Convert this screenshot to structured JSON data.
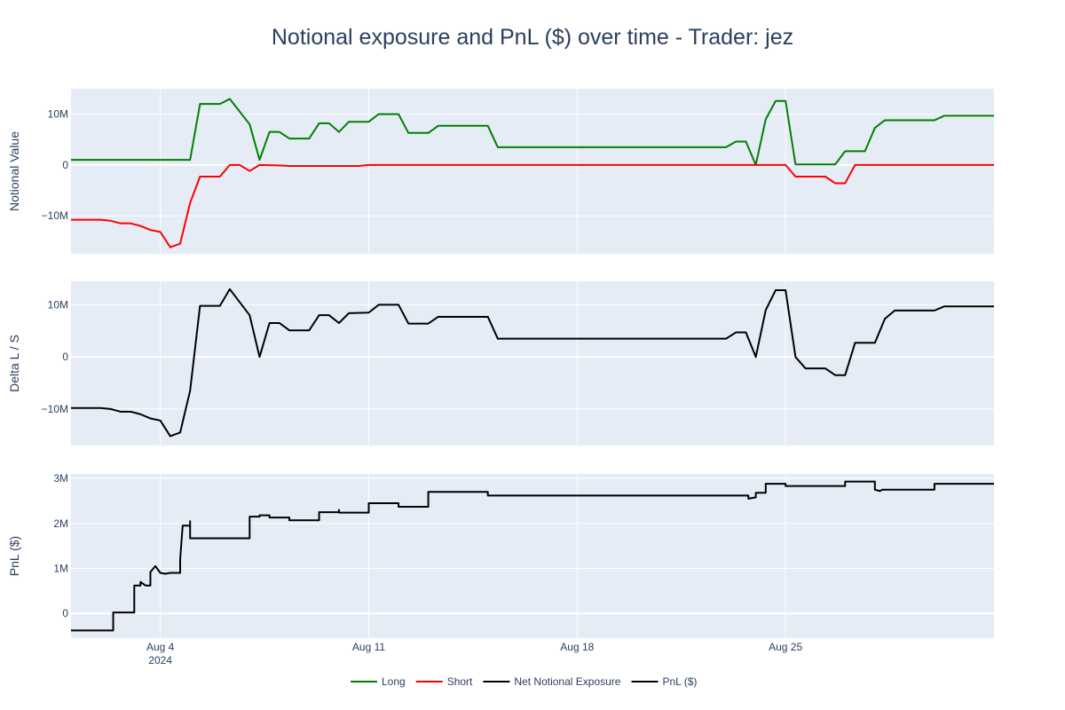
{
  "chart_data": {
    "type": "line",
    "title": "Notional exposure and PnL ($) over time - Trader: jez",
    "x_range": [
      "2024-08-01",
      "2024-09-01"
    ],
    "x_ticks": [
      {
        "date": "2024-08-04",
        "label": "Aug 4",
        "sublabel": "2024"
      },
      {
        "date": "2024-08-11",
        "label": "Aug 11",
        "sublabel": ""
      },
      {
        "date": "2024-08-18",
        "label": "Aug 18",
        "sublabel": ""
      },
      {
        "date": "2024-08-25",
        "label": "Aug 25",
        "sublabel": ""
      }
    ],
    "colors": {
      "plot_bg": "#e5ecf6",
      "grid": "#ffffff",
      "text": "#2a3f5f",
      "long": "#008000",
      "short": "#ff0000",
      "net": "#000000",
      "pnl": "#000000"
    },
    "panels": [
      {
        "ylabel": "Notional Value",
        "ylim": [
          -17.5,
          15
        ],
        "ticks": [
          {
            "v": 10,
            "label": "10M"
          },
          {
            "v": 0,
            "label": "0"
          },
          {
            "v": -10,
            "label": "−10M"
          }
        ],
        "series": [
          "long",
          "short"
        ]
      },
      {
        "ylabel": "Delta L / S",
        "ylim": [
          -17,
          14.5
        ],
        "ticks": [
          {
            "v": 10,
            "label": "10M"
          },
          {
            "v": 0,
            "label": "0"
          },
          {
            "v": -10,
            "label": "−10M"
          }
        ],
        "series": [
          "net"
        ]
      },
      {
        "ylabel": "PnL ($)",
        "ylim": [
          -0.55,
          3.1
        ],
        "ticks": [
          {
            "v": 3,
            "label": "3M"
          },
          {
            "v": 2,
            "label": "2M"
          },
          {
            "v": 1,
            "label": "1M"
          },
          {
            "v": 0,
            "label": "0"
          }
        ],
        "series": [
          "pnl"
        ]
      }
    ],
    "series": {
      "long": {
        "name": "Long",
        "unit": "$M",
        "points": [
          [
            "2024-08-01",
            1.0
          ],
          [
            "2024-08-05",
            1.0
          ],
          [
            "2024-08-05 08:00",
            12.0
          ],
          [
            "2024-08-06",
            12.0
          ],
          [
            "2024-08-06 08:00",
            13.0
          ],
          [
            "2024-08-07",
            8.0
          ],
          [
            "2024-08-07 08:00",
            1.0
          ],
          [
            "2024-08-07 16:00",
            6.5
          ],
          [
            "2024-08-08",
            6.5
          ],
          [
            "2024-08-08 08:00",
            5.2
          ],
          [
            "2024-08-09",
            5.2
          ],
          [
            "2024-08-09 08:00",
            8.2
          ],
          [
            "2024-08-09 16:00",
            8.2
          ],
          [
            "2024-08-10",
            6.5
          ],
          [
            "2024-08-10 08:00",
            8.5
          ],
          [
            "2024-08-11",
            8.5
          ],
          [
            "2024-08-11 08:00",
            10.0
          ],
          [
            "2024-08-12",
            10.0
          ],
          [
            "2024-08-12 08:00",
            6.3
          ],
          [
            "2024-08-13",
            6.3
          ],
          [
            "2024-08-13 08:00",
            7.7
          ],
          [
            "2024-08-15",
            7.7
          ],
          [
            "2024-08-15 08:00",
            3.5
          ],
          [
            "2024-08-23",
            3.5
          ],
          [
            "2024-08-23 08:00",
            4.6
          ],
          [
            "2024-08-23 16:00",
            4.6
          ],
          [
            "2024-08-24",
            0.0
          ],
          [
            "2024-08-24 08:00",
            9.0
          ],
          [
            "2024-08-24 16:00",
            12.6
          ],
          [
            "2024-08-25",
            12.6
          ],
          [
            "2024-08-25 08:00",
            0.1
          ],
          [
            "2024-08-26 16:00",
            0.1
          ],
          [
            "2024-08-27",
            2.7
          ],
          [
            "2024-08-27 16:00",
            2.7
          ],
          [
            "2024-08-28",
            7.3
          ],
          [
            "2024-08-28 08:00",
            8.8
          ],
          [
            "2024-08-30",
            8.8
          ],
          [
            "2024-08-30 08:00",
            9.7
          ],
          [
            "2024-09-01",
            9.7
          ]
        ]
      },
      "short": {
        "name": "Short",
        "unit": "$M",
        "points": [
          [
            "2024-08-01",
            -10.8
          ],
          [
            "2024-08-02",
            -10.8
          ],
          [
            "2024-08-02 08:00",
            -11.0
          ],
          [
            "2024-08-02 16:00",
            -11.5
          ],
          [
            "2024-08-03",
            -11.5
          ],
          [
            "2024-08-03 08:00",
            -12.0
          ],
          [
            "2024-08-03 16:00",
            -12.8
          ],
          [
            "2024-08-04",
            -13.2
          ],
          [
            "2024-08-04 08:00",
            -16.2
          ],
          [
            "2024-08-04 16:00",
            -15.5
          ],
          [
            "2024-08-05",
            -7.5
          ],
          [
            "2024-08-05 08:00",
            -2.3
          ],
          [
            "2024-08-06",
            -2.3
          ],
          [
            "2024-08-06 08:00",
            0.0
          ],
          [
            "2024-08-06 16:00",
            0.0
          ],
          [
            "2024-08-07",
            -1.2
          ],
          [
            "2024-08-07 08:00",
            0.0
          ],
          [
            "2024-08-08",
            -0.1
          ],
          [
            "2024-08-08 08:00",
            -0.2
          ],
          [
            "2024-08-10 16:00",
            -0.2
          ],
          [
            "2024-08-11",
            0.0
          ],
          [
            "2024-08-25",
            0.0
          ],
          [
            "2024-08-25 08:00",
            -2.3
          ],
          [
            "2024-08-26 08:00",
            -2.3
          ],
          [
            "2024-08-26 16:00",
            -3.6
          ],
          [
            "2024-08-27",
            -3.6
          ],
          [
            "2024-08-27 08:00",
            0.0
          ],
          [
            "2024-09-01",
            0.0
          ]
        ]
      },
      "net": {
        "name": "Net Notional Exposure",
        "unit": "$M",
        "points": [
          [
            "2024-08-01",
            -9.8
          ],
          [
            "2024-08-02",
            -9.8
          ],
          [
            "2024-08-02 08:00",
            -10.0
          ],
          [
            "2024-08-02 16:00",
            -10.5
          ],
          [
            "2024-08-03",
            -10.5
          ],
          [
            "2024-08-03 08:00",
            -11.0
          ],
          [
            "2024-08-03 16:00",
            -11.8
          ],
          [
            "2024-08-04",
            -12.2
          ],
          [
            "2024-08-04 08:00",
            -15.2
          ],
          [
            "2024-08-04 16:00",
            -14.5
          ],
          [
            "2024-08-05",
            -6.5
          ],
          [
            "2024-08-05 08:00",
            9.8
          ],
          [
            "2024-08-06",
            9.8
          ],
          [
            "2024-08-06 08:00",
            13.0
          ],
          [
            "2024-08-07",
            8.0
          ],
          [
            "2024-08-07 08:00",
            0.0
          ],
          [
            "2024-08-07 16:00",
            6.5
          ],
          [
            "2024-08-08",
            6.5
          ],
          [
            "2024-08-08 08:00",
            5.1
          ],
          [
            "2024-08-09",
            5.1
          ],
          [
            "2024-08-09 08:00",
            8.0
          ],
          [
            "2024-08-09 16:00",
            8.0
          ],
          [
            "2024-08-10",
            6.5
          ],
          [
            "2024-08-10 08:00",
            8.4
          ],
          [
            "2024-08-11",
            8.5
          ],
          [
            "2024-08-11 08:00",
            10.0
          ],
          [
            "2024-08-12",
            10.0
          ],
          [
            "2024-08-12 08:00",
            6.4
          ],
          [
            "2024-08-13",
            6.4
          ],
          [
            "2024-08-13 08:00",
            7.7
          ],
          [
            "2024-08-15",
            7.7
          ],
          [
            "2024-08-15 08:00",
            3.5
          ],
          [
            "2024-08-23",
            3.5
          ],
          [
            "2024-08-23 08:00",
            4.7
          ],
          [
            "2024-08-23 16:00",
            4.7
          ],
          [
            "2024-08-24",
            0.0
          ],
          [
            "2024-08-24 08:00",
            9.0
          ],
          [
            "2024-08-24 16:00",
            12.8
          ],
          [
            "2024-08-25",
            12.8
          ],
          [
            "2024-08-25 08:00",
            0.0
          ],
          [
            "2024-08-25 16:00",
            -2.2
          ],
          [
            "2024-08-26 08:00",
            -2.2
          ],
          [
            "2024-08-26 16:00",
            -3.5
          ],
          [
            "2024-08-27",
            -3.5
          ],
          [
            "2024-08-27 08:00",
            2.7
          ],
          [
            "2024-08-28",
            2.7
          ],
          [
            "2024-08-28 08:00",
            7.3
          ],
          [
            "2024-08-28 16:00",
            8.9
          ],
          [
            "2024-08-30",
            8.9
          ],
          [
            "2024-08-30 08:00",
            9.7
          ],
          [
            "2024-09-01",
            9.7
          ]
        ]
      },
      "pnl": {
        "name": "PnL ($)",
        "unit": "$M",
        "points": [
          [
            "2024-08-01",
            -0.38
          ],
          [
            "2024-08-02 10:00",
            -0.38
          ],
          [
            "2024-08-02 10:00",
            0.02
          ],
          [
            "2024-08-03 03:00",
            0.02
          ],
          [
            "2024-08-03 03:00",
            0.62
          ],
          [
            "2024-08-03 08:00",
            0.62
          ],
          [
            "2024-08-03 08:00",
            0.7
          ],
          [
            "2024-08-03 12:00",
            0.62
          ],
          [
            "2024-08-03 16:00",
            0.62
          ],
          [
            "2024-08-03 16:00",
            0.92
          ],
          [
            "2024-08-03 20:00",
            1.05
          ],
          [
            "2024-08-04",
            0.9
          ],
          [
            "2024-08-04 04:00",
            0.88
          ],
          [
            "2024-08-04 08:00",
            0.9
          ],
          [
            "2024-08-04 16:00",
            0.9
          ],
          [
            "2024-08-04 16:00",
            1.2
          ],
          [
            "2024-08-04 18:00",
            1.95
          ],
          [
            "2024-08-05",
            1.95
          ],
          [
            "2024-08-05",
            2.05
          ],
          [
            "2024-08-05",
            1.67
          ],
          [
            "2024-08-07",
            1.67
          ],
          [
            "2024-08-07",
            2.15
          ],
          [
            "2024-08-07 08:00",
            2.15
          ],
          [
            "2024-08-07 08:00",
            2.18
          ],
          [
            "2024-08-07 16:00",
            2.18
          ],
          [
            "2024-08-07 16:00",
            2.13
          ],
          [
            "2024-08-08 08:00",
            2.13
          ],
          [
            "2024-08-08 08:00",
            2.07
          ],
          [
            "2024-08-09 08:00",
            2.07
          ],
          [
            "2024-08-09 08:00",
            2.25
          ],
          [
            "2024-08-10",
            2.25
          ],
          [
            "2024-08-10",
            2.3
          ],
          [
            "2024-08-10",
            2.24
          ],
          [
            "2024-08-11",
            2.24
          ],
          [
            "2024-08-11",
            2.45
          ],
          [
            "2024-08-12",
            2.45
          ],
          [
            "2024-08-12",
            2.37
          ],
          [
            "2024-08-13",
            2.37
          ],
          [
            "2024-08-13",
            2.7
          ],
          [
            "2024-08-15",
            2.7
          ],
          [
            "2024-08-15",
            2.62
          ],
          [
            "2024-08-23 18:00",
            2.62
          ],
          [
            "2024-08-23 18:00",
            2.55
          ],
          [
            "2024-08-24",
            2.58
          ],
          [
            "2024-08-24",
            2.68
          ],
          [
            "2024-08-24 08:00",
            2.68
          ],
          [
            "2024-08-24 08:00",
            2.88
          ],
          [
            "2024-08-25",
            2.88
          ],
          [
            "2024-08-25",
            2.83
          ],
          [
            "2024-08-27",
            2.83
          ],
          [
            "2024-08-27",
            2.93
          ],
          [
            "2024-08-28",
            2.93
          ],
          [
            "2024-08-28",
            2.75
          ],
          [
            "2024-08-28 04:00",
            2.72
          ],
          [
            "2024-08-28 06:00",
            2.75
          ],
          [
            "2024-08-30",
            2.75
          ],
          [
            "2024-08-30",
            2.88
          ],
          [
            "2024-09-01",
            2.88
          ]
        ]
      }
    },
    "legend": {
      "placement": "bottom-center",
      "items": [
        {
          "key": "long",
          "label": "Long"
        },
        {
          "key": "short",
          "label": "Short"
        },
        {
          "key": "net",
          "label": "Net Notional Exposure"
        },
        {
          "key": "pnl",
          "label": "PnL ($)"
        }
      ]
    }
  }
}
